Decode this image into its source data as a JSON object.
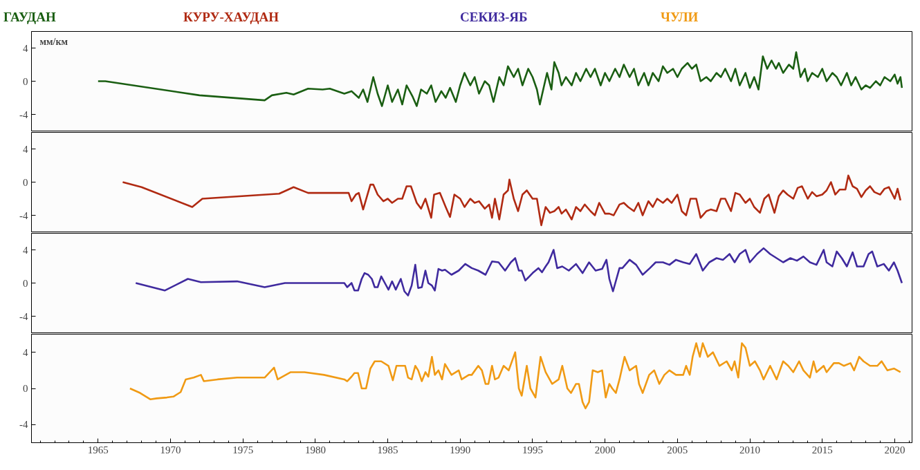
{
  "chart_data": [
    {
      "type": "line",
      "ylabel": "мм/км",
      "legend": "top",
      "tick_labels": "y",
      "grid": false,
      "line_style": "solid",
      "marker": "none",
      "xlim": [
        1960.4,
        2021.2
      ],
      "ylim": [
        -6,
        6
      ],
      "xticks": [
        1965,
        1970,
        1975,
        1980,
        1985,
        1990,
        1995,
        2000,
        2005,
        2010,
        2015,
        2020
      ],
      "yticks": [
        -4,
        0,
        4
      ],
      "series": [
        {
          "name": "ГАУДАН",
          "color": "#1a5e12",
          "x": [
            1965.0,
            1965.5,
            1972,
            1976.5,
            1977,
            1978,
            1978.5,
            1979.5,
            1980.5,
            1981,
            1982,
            1982.5,
            1983,
            1983.3,
            1983.6,
            1984,
            1984.3,
            1984.6,
            1985,
            1985.3,
            1985.7,
            1986,
            1986.3,
            1986.7,
            1987,
            1987.3,
            1987.7,
            1988,
            1988.3,
            1988.7,
            1989,
            1989.3,
            1989.7,
            1990,
            1990.3,
            1990.7,
            1991,
            1991.3,
            1991.7,
            1992,
            1992.3,
            1992.7,
            1993,
            1993.3,
            1993.7,
            1994,
            1994.3,
            1994.7,
            1995,
            1995.3,
            1995.5,
            1995.8,
            1996,
            1996.3,
            1996.5,
            1996.8,
            1997,
            1997.3,
            1997.7,
            1998,
            1998.3,
            1998.7,
            1999,
            1999.3,
            1999.7,
            2000,
            2000.3,
            2000.7,
            2001,
            2001.3,
            2001.7,
            2002,
            2002.3,
            2002.7,
            2003,
            2003.3,
            2003.7,
            2004,
            2004.3,
            2004.7,
            2005,
            2005.3,
            2005.7,
            2006,
            2006.3,
            2006.6,
            2007,
            2007.3,
            2007.7,
            2008,
            2008.3,
            2008.7,
            2009,
            2009.3,
            2009.7,
            2010,
            2010.3,
            2010.6,
            2010.9,
            2011.2,
            2011.5,
            2011.8,
            2012,
            2012.3,
            2012.7,
            2013,
            2013.2,
            2013.5,
            2013.8,
            2014,
            2014.3,
            2014.7,
            2015,
            2015.3,
            2015.7,
            2016,
            2016.3,
            2016.7,
            2017,
            2017.3,
            2017.7,
            2018,
            2018.3,
            2018.7,
            2019,
            2019.3,
            2019.7,
            2020,
            2020.2,
            2020.4,
            2020.5
          ],
          "values": [
            0,
            0,
            -1.7,
            -2.3,
            -1.7,
            -1.4,
            -1.6,
            -0.9,
            -1.0,
            -0.9,
            -1.5,
            -1.2,
            -2.0,
            -1.0,
            -2.5,
            0.5,
            -1.5,
            -3.0,
            -0.5,
            -2.5,
            -1.0,
            -2.8,
            -0.5,
            -1.8,
            -3.0,
            -1.0,
            -1.5,
            -0.5,
            -2.5,
            -1.2,
            -2.0,
            -0.8,
            -2.5,
            -0.5,
            1.0,
            -0.5,
            0.5,
            -1.5,
            0.0,
            -0.5,
            -2.5,
            0.5,
            -0.5,
            1.8,
            0.5,
            1.5,
            -0.5,
            1.5,
            0.5,
            -1.0,
            -2.8,
            -0.5,
            1.0,
            -1.0,
            2.3,
            1.0,
            -0.5,
            0.5,
            -0.5,
            1.0,
            0.0,
            1.5,
            0.5,
            1.5,
            -0.5,
            1.0,
            0.0,
            1.5,
            0.5,
            2.0,
            0.5,
            1.5,
            -0.5,
            1.0,
            -0.5,
            1.0,
            0.0,
            1.8,
            1.0,
            1.5,
            0.5,
            1.5,
            2.2,
            1.5,
            2.0,
            0.0,
            0.5,
            0.0,
            1.0,
            0.5,
            1.5,
            0.0,
            1.5,
            -0.5,
            1.0,
            -0.8,
            0.5,
            -1.0,
            3.0,
            1.5,
            2.5,
            1.5,
            2.2,
            1.0,
            2.0,
            1.5,
            3.5,
            0.5,
            1.5,
            0.0,
            1.0,
            0.5,
            1.5,
            0.0,
            1.0,
            0.5,
            -0.5,
            1.0,
            -0.5,
            0.5,
            -1.0,
            -0.5,
            -0.8,
            0.0,
            -0.5,
            0.5,
            0.0,
            0.8,
            -0.3,
            0.5,
            -0.8
          ]
        }
      ]
    },
    {
      "type": "line",
      "legend": "top",
      "tick_labels": "y",
      "grid": false,
      "line_style": "solid",
      "marker": "none",
      "xlim": [
        1960.4,
        2021.2
      ],
      "ylim": [
        -6,
        6
      ],
      "xticks": [
        1965,
        1970,
        1975,
        1980,
        1985,
        1990,
        1995,
        2000,
        2005,
        2010,
        2015,
        2020
      ],
      "yticks": [
        -4,
        0,
        4
      ],
      "series": [
        {
          "name": "КУРУ-ХАУДАН",
          "color": "#b02a12",
          "x": [
            1966.7,
            1968,
            1971.5,
            1972.2,
            1977.5,
            1978.5,
            1979.5,
            1982.3,
            1982.5,
            1982.8,
            1983,
            1983.3,
            1983.8,
            1984,
            1984.3,
            1984.7,
            1985,
            1985.3,
            1985.7,
            1986,
            1986.3,
            1986.6,
            1987,
            1987.3,
            1987.6,
            1988,
            1988.2,
            1988.6,
            1989,
            1989.3,
            1989.6,
            1990,
            1990.3,
            1990.7,
            1991,
            1991.3,
            1991.7,
            1992,
            1992.2,
            1992.4,
            1992.7,
            1993,
            1993.3,
            1993.4,
            1993.7,
            1994,
            1994.3,
            1994.6,
            1995,
            1995.3,
            1995.6,
            1995.9,
            1996.2,
            1996.5,
            1996.8,
            1997,
            1997.3,
            1997.7,
            1998,
            1998.3,
            1998.6,
            1999,
            1999.3,
            1999.6,
            2000,
            2000.3,
            2000.6,
            2001,
            2001.3,
            2001.6,
            2002,
            2002.3,
            2002.6,
            2003,
            2003.3,
            2003.6,
            2004,
            2004.3,
            2004.6,
            2005,
            2005.3,
            2005.6,
            2005.9,
            2006.3,
            2006.6,
            2007,
            2007.3,
            2007.7,
            2008,
            2008.3,
            2008.7,
            2009,
            2009.3,
            2009.7,
            2010,
            2010.3,
            2010.7,
            2011,
            2011.3,
            2011.7,
            2012,
            2012.3,
            2012.6,
            2013,
            2013.3,
            2013.6,
            2014,
            2014.3,
            2014.6,
            2015,
            2015.3,
            2015.6,
            2015.9,
            2016.2,
            2016.6,
            2016.8,
            2017.1,
            2017.4,
            2017.7,
            2018,
            2018.3,
            2018.6,
            2019,
            2019.3,
            2019.6,
            2020,
            2020.2,
            2020.4
          ],
          "values": [
            0,
            -0.6,
            -3.0,
            -2.0,
            -1.4,
            -0.6,
            -1.3,
            -1.3,
            -2.3,
            -1.5,
            -1.3,
            -3.3,
            -0.3,
            -0.3,
            -1.5,
            -2.3,
            -2.0,
            -2.5,
            -2.0,
            -2.0,
            -0.5,
            -0.5,
            -2.5,
            -3.2,
            -2.0,
            -4.3,
            -1.5,
            -1.3,
            -3.0,
            -4.2,
            -1.5,
            -2.0,
            -3.0,
            -2.0,
            -2.5,
            -2.3,
            -3.2,
            -2.7,
            -4.3,
            -2.0,
            -4.5,
            -1.5,
            -1.0,
            0.3,
            -2.0,
            -3.5,
            -1.5,
            -1.0,
            -2.0,
            -2.0,
            -5.2,
            -3.0,
            -3.7,
            -3.5,
            -3.0,
            -3.8,
            -3.3,
            -4.5,
            -3.0,
            -3.5,
            -2.7,
            -3.5,
            -4.0,
            -2.5,
            -3.8,
            -3.8,
            -4.0,
            -2.7,
            -2.5,
            -3.0,
            -3.5,
            -2.5,
            -4.0,
            -2.3,
            -3.0,
            -2.0,
            -2.5,
            -2.0,
            -2.5,
            -1.5,
            -3.5,
            -4.0,
            -2.0,
            -2.0,
            -4.3,
            -3.5,
            -3.3,
            -3.5,
            -2.0,
            -2.0,
            -3.5,
            -1.3,
            -1.5,
            -2.5,
            -2.0,
            -3.0,
            -3.7,
            -2.0,
            -1.5,
            -3.7,
            -1.7,
            -1.0,
            -1.5,
            -2.0,
            -0.7,
            -0.5,
            -2.0,
            -1.2,
            -1.7,
            -1.5,
            -1.0,
            0.0,
            -1.5,
            -0.9,
            -0.9,
            0.8,
            -0.5,
            -0.8,
            -1.8,
            -1.0,
            -0.5,
            -1.2,
            -1.5,
            -0.8,
            -0.6,
            -2.0,
            -0.8,
            -2.2
          ]
        }
      ]
    },
    {
      "type": "line",
      "legend": "top",
      "tick_labels": "y",
      "grid": false,
      "line_style": "solid",
      "marker": "none",
      "xlim": [
        1960.4,
        2021.2
      ],
      "ylim": [
        -6,
        6
      ],
      "xticks": [
        1965,
        1970,
        1975,
        1980,
        1985,
        1990,
        1995,
        2000,
        2005,
        2010,
        2015,
        2020
      ],
      "yticks": [
        -4,
        0,
        4
      ],
      "series": [
        {
          "name": "СЕКИЗ-ЯБ",
          "color": "#3f2a9e",
          "x": [
            1967.6,
            1969.6,
            1971.2,
            1972.1,
            1974.6,
            1976.5,
            1977.9,
            1982.0,
            1982.2,
            1982.5,
            1982.7,
            1982.95,
            1983.2,
            1983.4,
            1983.65,
            1983.9,
            1984.1,
            1984.3,
            1984.55,
            1984.8,
            1985.05,
            1985.3,
            1985.55,
            1985.9,
            1986.15,
            1986.4,
            1986.65,
            1986.9,
            1987.1,
            1987.35,
            1987.6,
            1987.8,
            1988.05,
            1988.25,
            1988.5,
            1988.75,
            1988.95,
            1989.4,
            1989.9,
            1990.35,
            1990.8,
            1991.25,
            1991.75,
            1992.2,
            1992.65,
            1993.1,
            1993.5,
            1993.8,
            1994.05,
            1994.25,
            1994.5,
            1995.0,
            1995.4,
            1995.65,
            1995.9,
            1996.1,
            1996.45,
            1996.7,
            1997.05,
            1997.5,
            1998.0,
            1998.45,
            1998.9,
            1999.35,
            1999.8,
            2000.1,
            2000.3,
            2000.55,
            2001.0,
            2001.2,
            2001.7,
            2002.15,
            2002.6,
            2003.1,
            2003.5,
            2004.0,
            2004.45,
            2004.9,
            2005.4,
            2005.85,
            2006.3,
            2006.75,
            2007.2,
            2007.7,
            2008.15,
            2008.6,
            2008.95,
            2009.3,
            2009.7,
            2010.0,
            2010.5,
            2010.95,
            2011.4,
            2011.85,
            2012.3,
            2012.8,
            2013.25,
            2013.7,
            2014.15,
            2014.6,
            2015.1,
            2015.3,
            2015.7,
            2016.0,
            2016.35,
            2016.7,
            2017.1,
            2017.4,
            2017.85,
            2018.2,
            2018.45,
            2018.8,
            2019.25,
            2019.6,
            2019.95,
            2020.2,
            2020.5
          ],
          "values": [
            0.0,
            -0.9,
            0.5,
            0.1,
            0.2,
            -0.5,
            0.0,
            0.0,
            -0.5,
            0.0,
            -0.9,
            -0.9,
            0.5,
            1.2,
            1.0,
            0.5,
            -0.5,
            -0.5,
            0.8,
            0.0,
            -0.8,
            0.2,
            -0.8,
            0.5,
            -1.0,
            -1.5,
            -0.3,
            2.2,
            -0.6,
            -0.5,
            1.5,
            0.0,
            -0.3,
            -0.9,
            1.7,
            1.5,
            1.6,
            1.0,
            1.5,
            2.3,
            1.8,
            1.5,
            1.0,
            2.6,
            2.5,
            1.5,
            2.5,
            3.0,
            1.5,
            1.5,
            0.3,
            1.2,
            1.8,
            1.3,
            2.0,
            2.5,
            4.0,
            1.8,
            2.0,
            1.5,
            2.3,
            1.2,
            2.5,
            1.5,
            1.7,
            2.8,
            0.5,
            -1.0,
            1.8,
            1.8,
            2.8,
            2.2,
            1.0,
            1.8,
            2.5,
            2.5,
            2.2,
            2.8,
            2.5,
            2.3,
            3.5,
            1.5,
            2.5,
            3.0,
            2.8,
            3.5,
            2.5,
            3.5,
            4.0,
            2.5,
            3.5,
            4.2,
            3.5,
            3.0,
            2.5,
            3.0,
            2.7,
            3.2,
            2.5,
            2.2,
            4.0,
            2.5,
            2.0,
            3.8,
            3.0,
            2.0,
            3.7,
            2.0,
            2.0,
            3.5,
            3.8,
            2.0,
            2.3,
            1.5,
            2.5,
            1.5,
            0.0
          ]
        }
      ]
    },
    {
      "type": "line",
      "legend": "top",
      "grid": false,
      "line_style": "solid",
      "marker": "none",
      "xlim": [
        1960.4,
        2021.2
      ],
      "ylim": [
        -6,
        6
      ],
      "xticks": [
        1965,
        1970,
        1975,
        1980,
        1985,
        1990,
        1995,
        2000,
        2005,
        2010,
        2015,
        2020
      ],
      "yticks": [
        -4,
        0,
        4
      ],
      "series": [
        {
          "name": "ЧУЛИ",
          "color": "#f09a14",
          "x": [
            1967.2,
            1967.9,
            1968.6,
            1969.05,
            1969.75,
            1970.2,
            1970.7,
            1971.05,
            1971.6,
            1972.1,
            1972.3,
            1973.25,
            1974.6,
            1976.5,
            1977.15,
            1977.4,
            1978.3,
            1979.25,
            1980.6,
            1982.0,
            1982.2,
            1982.5,
            1982.7,
            1982.95,
            1983.2,
            1983.5,
            1983.8,
            1984.1,
            1984.55,
            1985.05,
            1985.35,
            1985.6,
            1986.2,
            1986.4,
            1986.65,
            1986.9,
            1987.1,
            1987.35,
            1987.6,
            1987.8,
            1988.05,
            1988.25,
            1988.5,
            1988.75,
            1988.95,
            1989.4,
            1989.9,
            1990.1,
            1990.6,
            1990.8,
            1991.25,
            1991.5,
            1991.75,
            1991.95,
            1992.2,
            1992.4,
            1992.65,
            1993.0,
            1993.35,
            1993.8,
            1994.05,
            1994.25,
            1994.6,
            1994.85,
            1995.2,
            1995.55,
            1995.9,
            1996.35,
            1996.8,
            1997.05,
            1997.4,
            1997.65,
            1998.0,
            1998.2,
            1998.45,
            1998.65,
            1998.9,
            1999.15,
            1999.5,
            1999.8,
            2000.05,
            2000.3,
            2000.5,
            2000.75,
            2001.0,
            2001.35,
            2001.7,
            2002.15,
            2002.35,
            2002.6,
            2003.05,
            2003.4,
            2003.75,
            2004.1,
            2004.45,
            2004.9,
            2005.4,
            2005.6,
            2005.85,
            2006.05,
            2006.3,
            2006.55,
            2006.75,
            2007.1,
            2007.45,
            2007.9,
            2008.4,
            2008.75,
            2008.95,
            2009.2,
            2009.45,
            2009.7,
            2010.0,
            2010.35,
            2010.7,
            2010.95,
            2011.4,
            2011.85,
            2012.3,
            2012.65,
            2013.0,
            2013.4,
            2013.7,
            2014.15,
            2014.4,
            2014.6,
            2015.1,
            2015.3,
            2015.8,
            2016.15,
            2016.5,
            2016.95,
            2017.2,
            2017.55,
            2017.85,
            2018.3,
            2018.8,
            2019.1,
            2019.5,
            2019.95,
            2020.4
          ],
          "values": [
            0.0,
            -0.5,
            -1.2,
            -1.1,
            -1.0,
            -0.9,
            -0.4,
            1.0,
            1.2,
            1.5,
            0.8,
            1.0,
            1.2,
            1.2,
            2.3,
            1.0,
            1.8,
            1.8,
            1.5,
            1.0,
            0.8,
            1.3,
            1.7,
            1.7,
            0.0,
            0.0,
            2.2,
            3.0,
            3.0,
            2.5,
            0.9,
            2.5,
            2.5,
            1.2,
            1.0,
            2.5,
            2.0,
            0.8,
            1.8,
            1.3,
            3.5,
            1.5,
            2.0,
            1.0,
            2.7,
            1.5,
            2.0,
            1.0,
            1.5,
            1.5,
            2.5,
            2.0,
            0.5,
            0.5,
            2.5,
            1.0,
            1.2,
            2.5,
            2.0,
            4.0,
            0.0,
            -0.8,
            2.5,
            0.0,
            -1.0,
            3.5,
            1.8,
            0.5,
            1.0,
            2.5,
            0.0,
            -0.5,
            0.5,
            0.5,
            -1.5,
            -2.2,
            -1.5,
            2.0,
            1.8,
            2.0,
            -1.0,
            0.5,
            0.0,
            -0.5,
            1.0,
            3.5,
            2.0,
            2.5,
            0.5,
            -0.5,
            1.5,
            2.0,
            0.5,
            1.5,
            2.0,
            1.5,
            1.5,
            2.5,
            1.5,
            3.5,
            5.0,
            3.5,
            5.0,
            3.5,
            4.0,
            2.5,
            3.0,
            2.0,
            3.0,
            1.2,
            5.0,
            4.5,
            2.5,
            3.0,
            2.0,
            1.0,
            2.5,
            1.0,
            3.0,
            2.5,
            1.8,
            3.0,
            2.0,
            1.2,
            3.0,
            1.8,
            2.5,
            1.8,
            2.8,
            2.8,
            2.5,
            2.8,
            2.0,
            3.5,
            3.0,
            2.5,
            2.5,
            3.0,
            2.0,
            2.2,
            1.8
          ]
        }
      ]
    }
  ]
}
